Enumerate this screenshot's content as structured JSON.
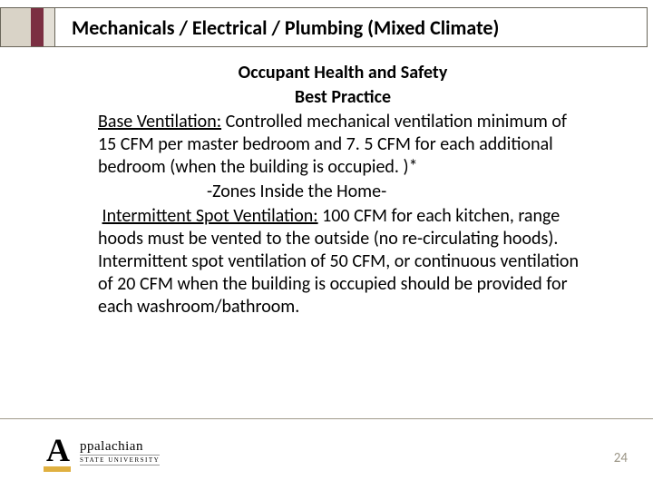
{
  "title": "Mechanicals / Electrical / Plumbing (Mixed Climate)",
  "subtitle": "Occupant Health and Safety",
  "practice_title": "Best Practice",
  "base_vent_label": "Base Ventilation:",
  "base_vent_text": " Controlled mechanical ventilation minimum of 15 CFM per master bedroom and 7. 5 CFM for each additional bedroom (when the building is occupied. )*",
  "zones_text": "-Zones Inside the Home-",
  "spot_vent_label": "Intermittent Spot Ventilation:",
  "spot_vent_text": " 100 CFM for each kitchen, range hoods must be vented to the outside (no re-circulating hoods). Intermittent spot ventilation of 50 CFM, or continuous ventilation of 20 CFM when the building is occupied should be provided for each washroom/bathroom.",
  "logo_main": "ppalachian",
  "logo_sub": "STATE  UNIVERSITY",
  "page_number": "24",
  "colors": {
    "title_border": "#696559",
    "accent_bar": "#7b2f42",
    "left_block": "#d9d3c7",
    "left_block_light": "#e3dfd6",
    "footer_line": "#a09a8a",
    "page_num": "#9a9485",
    "logo_gold": "#e0b040"
  }
}
